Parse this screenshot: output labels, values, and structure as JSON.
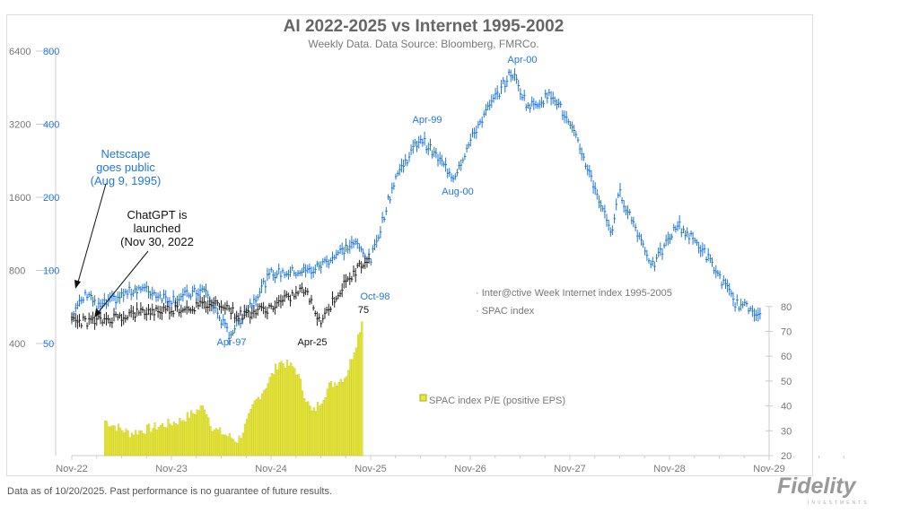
{
  "chart_data": {
    "type": "line",
    "title": "AI 2022-2025 vs Internet 1995-2002",
    "subtitle": "Weekly Data. Data Source: Bloomberg, FMRCo.",
    "x_ticks": [
      "Nov-22",
      "Nov-23",
      "Nov-24",
      "Nov-25",
      "Nov-26",
      "Nov-27",
      "Nov-28",
      "Nov-29"
    ],
    "y_left_outer": {
      "ticks": [
        "6400",
        "3200",
        "1600",
        "800",
        "400"
      ],
      "scale": "log",
      "range": [
        400,
        6400
      ]
    },
    "y_left_inner": {
      "ticks": [
        "800",
        "400",
        "200",
        "100",
        "50"
      ],
      "scale": "log",
      "range": [
        50,
        800
      ],
      "color": "#1f77e0"
    },
    "y_right": {
      "ticks": [
        "80",
        "70",
        "60",
        "50",
        "40",
        "30",
        "20"
      ],
      "range": [
        20,
        80
      ]
    },
    "series": [
      {
        "name": "Inter@ctive Week Internet index 1995-2005",
        "axis": "left_inner",
        "color": "#1f77e0",
        "points": [
          [
            "2022-11",
            65
          ],
          [
            "2023-01",
            82
          ],
          [
            "2023-02",
            70
          ],
          [
            "2023-07",
            85
          ],
          [
            "2023-11",
            76
          ],
          [
            "2024-03",
            83
          ],
          [
            "2024-06",
            54
          ],
          [
            "2024-11",
            97
          ],
          [
            "2025-04",
            100
          ],
          [
            "2025-09",
            130
          ],
          [
            "2025-11",
            110
          ],
          [
            "2026-02",
            243
          ],
          [
            "2026-05",
            352
          ],
          [
            "2026-09",
            243
          ],
          [
            "2026-12",
            400
          ],
          [
            "2027-04",
            659
          ],
          [
            "2027-06",
            470
          ],
          [
            "2027-09",
            534
          ],
          [
            "2027-12",
            335
          ],
          [
            "2028-04",
            144
          ],
          [
            "2028-05",
            210
          ],
          [
            "2028-09",
            104
          ],
          [
            "2028-12",
            155
          ],
          [
            "2029-03",
            122
          ],
          [
            "2029-07",
            73
          ],
          [
            "2029-10",
            67
          ]
        ]
      },
      {
        "name": "SPAC index",
        "axis": "left_outer",
        "color": "#222222",
        "points": [
          [
            "2022-11",
            494
          ],
          [
            "2023-02",
            494
          ],
          [
            "2023-07",
            536
          ],
          [
            "2024-01",
            563
          ],
          [
            "2024-05",
            590
          ],
          [
            "2024-07",
            520
          ],
          [
            "2024-11",
            563
          ],
          [
            "2025-03",
            670
          ],
          [
            "2025-05",
            494
          ],
          [
            "2025-07",
            640
          ],
          [
            "2025-10",
            860
          ],
          [
            "2025-11",
            940
          ]
        ]
      },
      {
        "name": "SPAC index P/E (positive EPS)",
        "axis": "right",
        "type": "bar",
        "color": "#e8e832",
        "points": [
          [
            "2023-03",
            34
          ],
          [
            "2023-06",
            29
          ],
          [
            "2023-12",
            34
          ],
          [
            "2024-03",
            40
          ],
          [
            "2024-04",
            31
          ],
          [
            "2024-07",
            26
          ],
          [
            "2024-09",
            41
          ],
          [
            "2024-12",
            58
          ],
          [
            "2025-02",
            55
          ],
          [
            "2025-04",
            37
          ],
          [
            "2025-06",
            48
          ],
          [
            "2025-08",
            52
          ],
          [
            "2025-10",
            75
          ]
        ]
      }
    ],
    "annotations": {
      "netscape": [
        "Netscape",
        "goes public",
        "(Aug 9, 1995)"
      ],
      "chatgpt": [
        "ChatGPT is",
        "launched",
        "(Nov 30, 2022"
      ],
      "apr00": "Apr-00",
      "apr99": "Apr-99",
      "aug00": "Aug-00",
      "oct98": "Oct-98",
      "pe_last": "75",
      "apr97": "Apr-97",
      "apr25": "Apr-25"
    }
  },
  "footer": "Data as of 10/20/2025. Past performance is no guarantee of future results.",
  "logo": "Fidelity",
  "logo_sub": "INVESTMENTS"
}
